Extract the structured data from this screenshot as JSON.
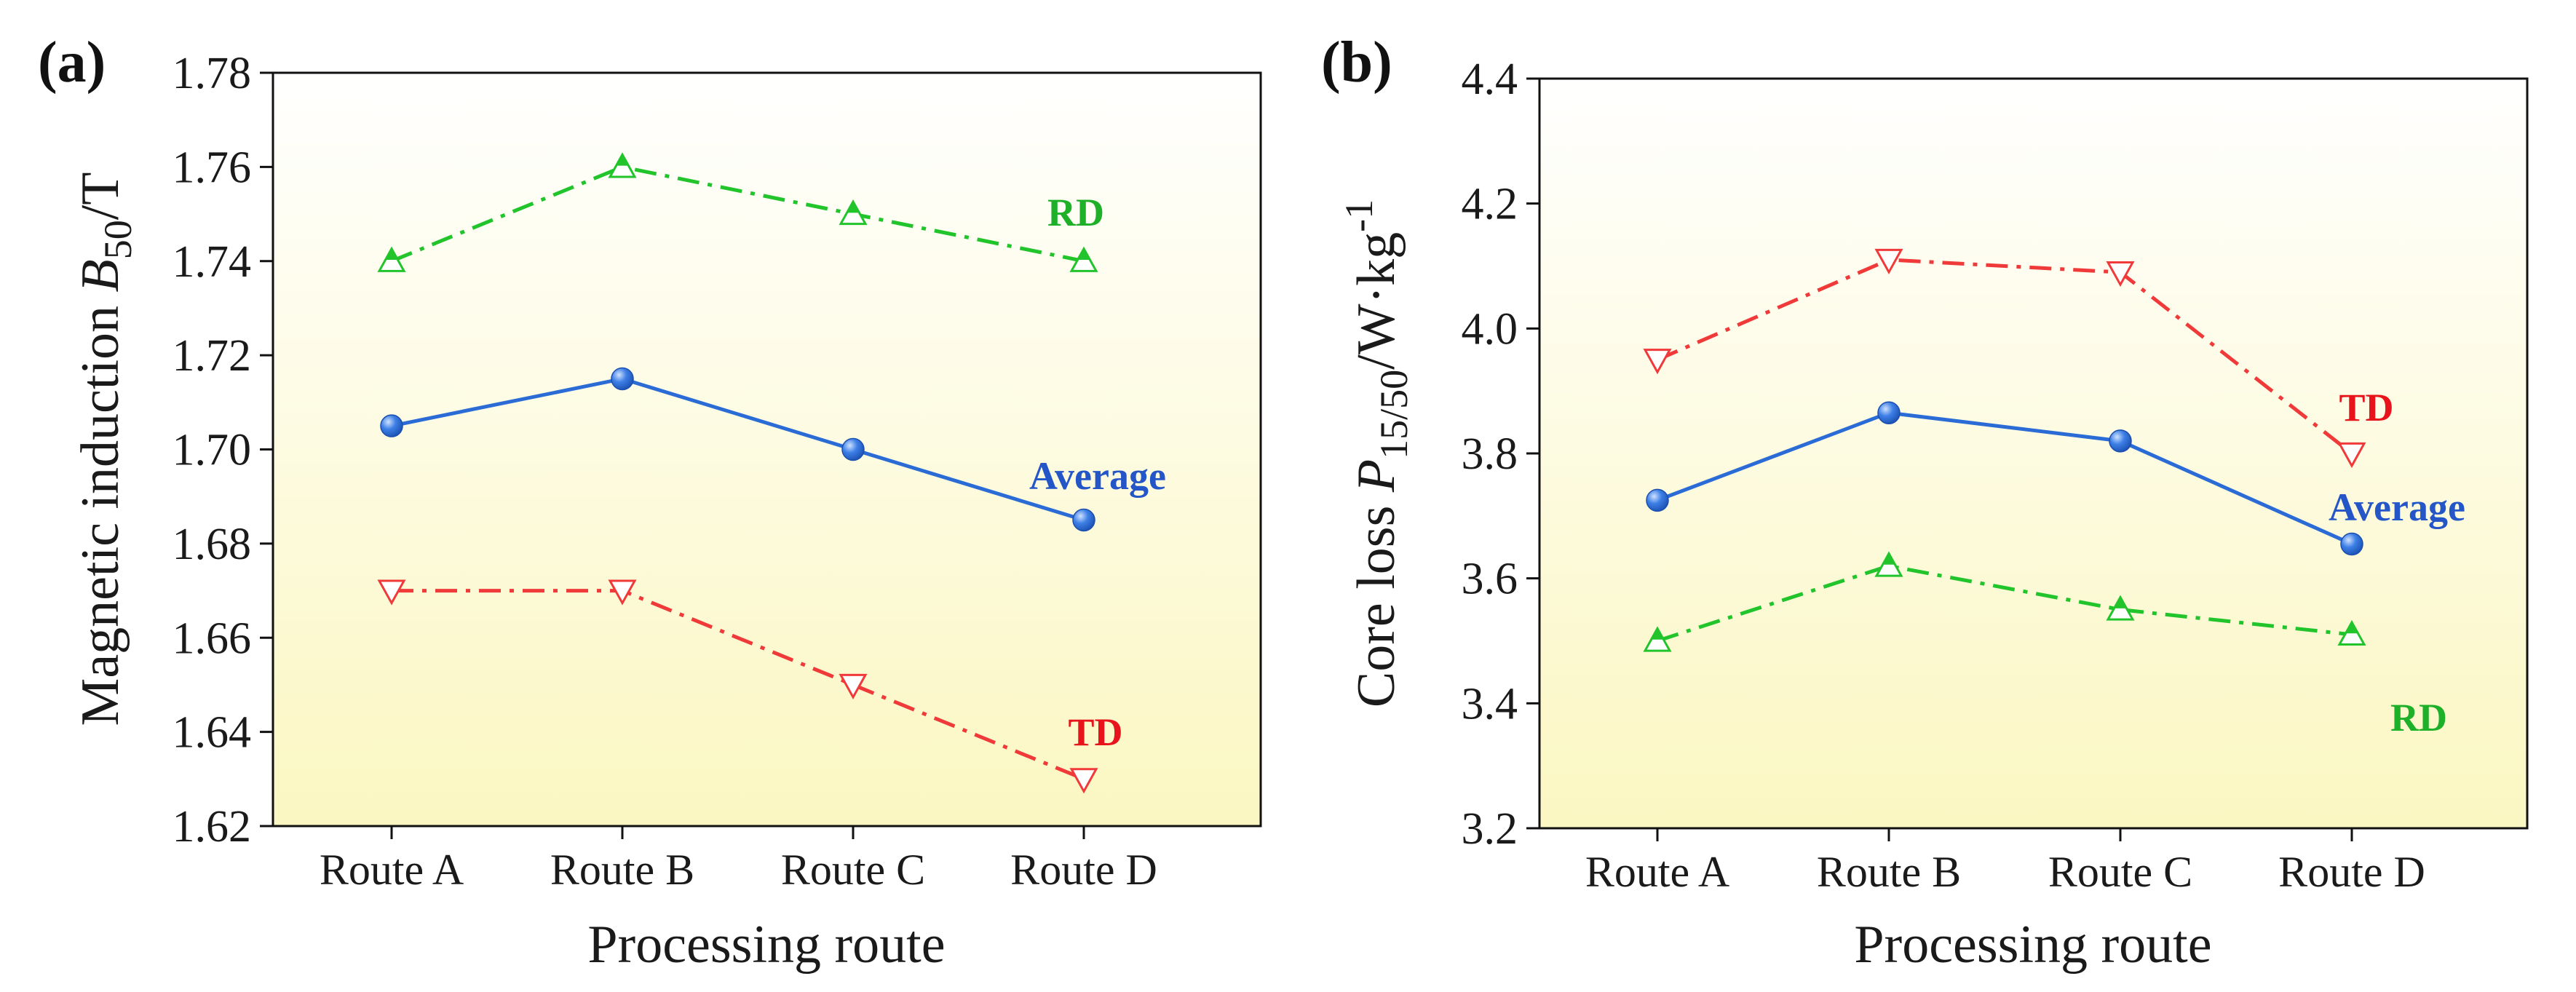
{
  "figure": {
    "colors": {
      "average": "#2a6bd6",
      "rd": "#22c42c",
      "td": "#f03a3a",
      "axis": "#111111",
      "bg_top": "#ffffff",
      "bg_bottom": "#fbf7c2"
    }
  },
  "chart_data": [
    {
      "type": "line",
      "panel_label": "(a)",
      "title": "",
      "xlabel": "Processing route",
      "ylabel_main": "Magnetic induction ",
      "ylabel_var": "B",
      "ylabel_sub": "50",
      "ylabel_unit": "/T",
      "categories": [
        "Route A",
        "Route B",
        "Route C",
        "Route D"
      ],
      "ylim": [
        1.62,
        1.78
      ],
      "yticks": [
        1.62,
        1.64,
        1.66,
        1.68,
        1.7,
        1.72,
        1.74,
        1.76,
        1.78
      ],
      "ytick_labels": [
        "1.62",
        "1.64",
        "1.66",
        "1.68",
        "1.70",
        "1.72",
        "1.74",
        "1.76",
        "1.78"
      ],
      "series": [
        {
          "name": "RD",
          "label": "RD",
          "color": "#22c42c",
          "marker": "triangle-up",
          "style": "dashdot",
          "values": [
            1.74,
            1.76,
            1.75,
            1.74
          ]
        },
        {
          "name": "Average",
          "label": "Average",
          "color": "#2a6bd6",
          "marker": "circle",
          "style": "solid",
          "values": [
            1.705,
            1.715,
            1.7,
            1.685
          ]
        },
        {
          "name": "TD",
          "label": "TD",
          "color": "#f03a3a",
          "marker": "triangle-down",
          "style": "dashdot",
          "values": [
            1.67,
            1.67,
            1.65,
            1.63
          ]
        }
      ]
    },
    {
      "type": "line",
      "panel_label": "(b)",
      "title": "",
      "xlabel": "Processing route",
      "ylabel_main": "Core loss ",
      "ylabel_var": "P",
      "ylabel_sub": "15/50",
      "ylabel_unit": "/W·kg",
      "ylabel_sup": "-1",
      "categories": [
        "Route A",
        "Route B",
        "Route C",
        "Route D"
      ],
      "ylim": [
        3.2,
        4.4
      ],
      "yticks": [
        3.2,
        3.4,
        3.6,
        3.8,
        4.0,
        4.2,
        4.4
      ],
      "ytick_labels": [
        "3.2",
        "3.4",
        "3.6",
        "3.8",
        "4.0",
        "4.2",
        "4.4"
      ],
      "series": [
        {
          "name": "TD",
          "label": "TD",
          "color": "#f03a3a",
          "marker": "triangle-down",
          "style": "dashdot",
          "values": [
            3.95,
            4.11,
            4.09,
            3.8
          ]
        },
        {
          "name": "Average",
          "label": "Average",
          "color": "#2a6bd6",
          "marker": "circle",
          "style": "solid",
          "values": [
            3.725,
            3.865,
            3.82,
            3.655
          ]
        },
        {
          "name": "RD",
          "label": "RD",
          "color": "#22c42c",
          "marker": "triangle-up",
          "style": "dashdot",
          "values": [
            3.5,
            3.62,
            3.55,
            3.51
          ]
        }
      ]
    }
  ]
}
